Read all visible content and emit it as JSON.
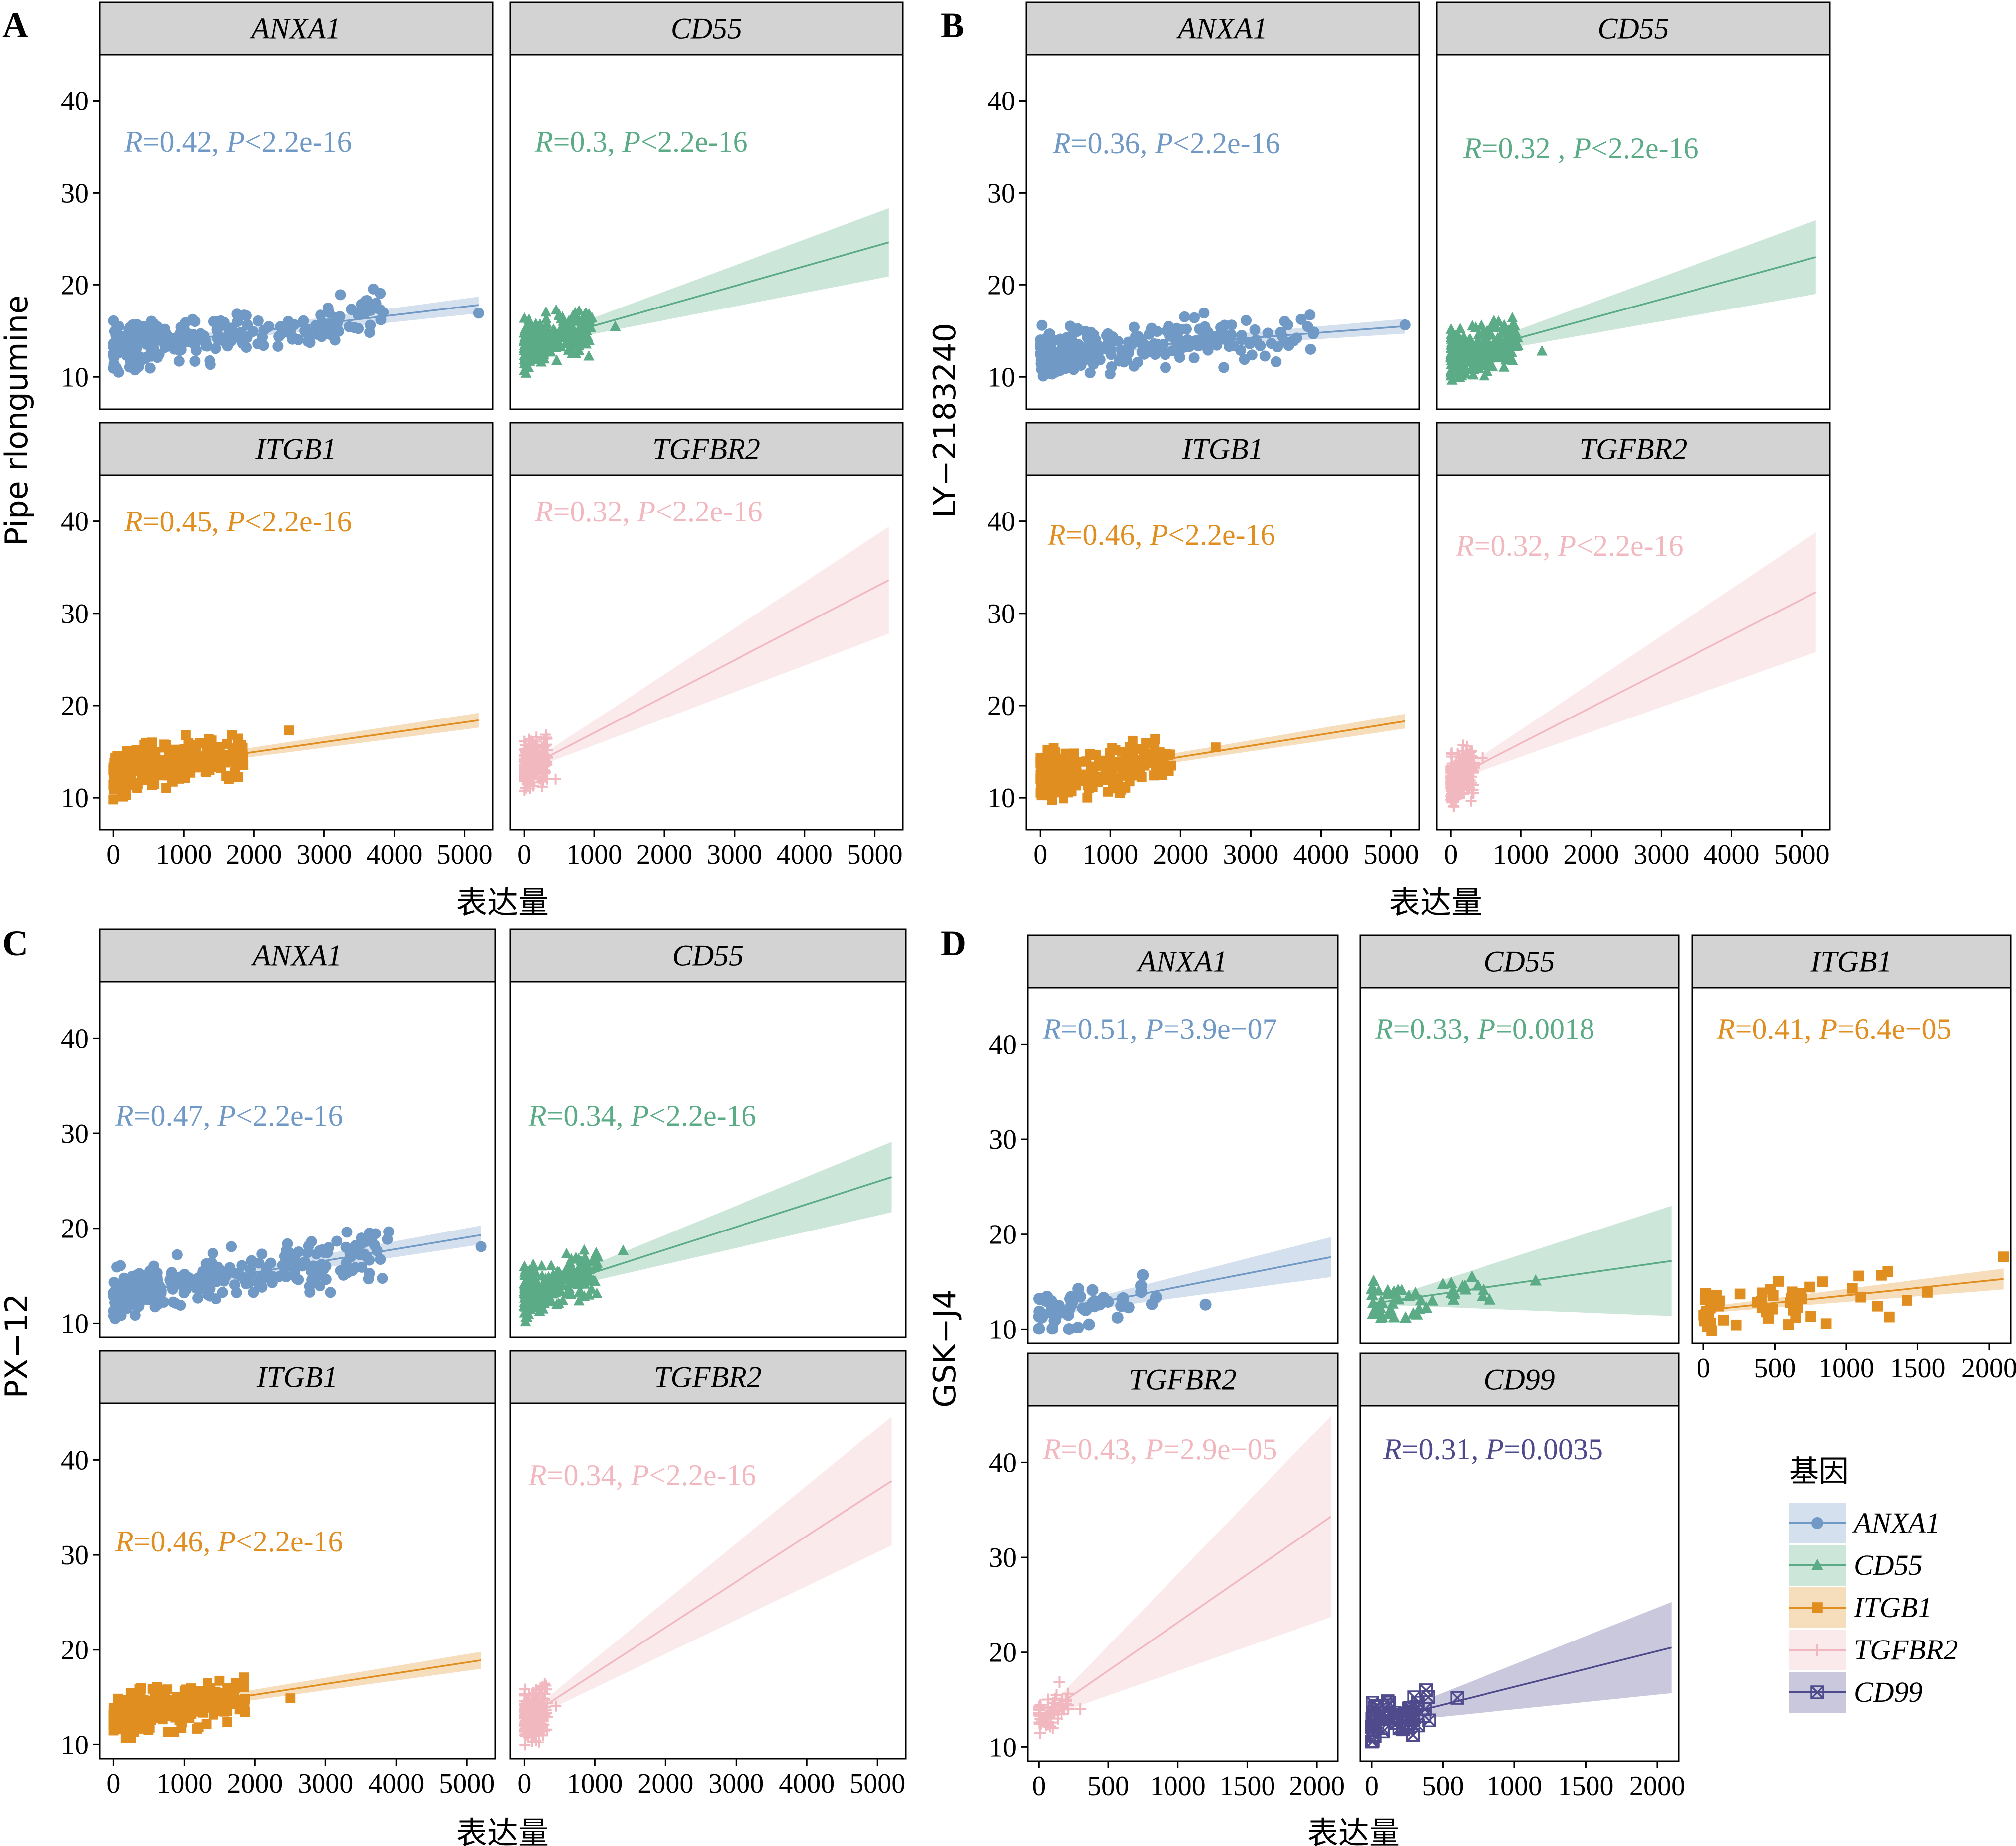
{
  "figure": {
    "legend": {
      "title": "基因",
      "entries": [
        {
          "name": "ANXA1",
          "color": "#7099c5",
          "shape": "circle"
        },
        {
          "name": "CD55",
          "color": "#5aab86",
          "shape": "triangle"
        },
        {
          "name": "ITGB1",
          "color": "#e18e21",
          "shape": "square"
        },
        {
          "name": "TGFBR2",
          "color": "#f2b8c0",
          "shape": "plus"
        },
        {
          "name": "CD99",
          "color": "#4e4a8c",
          "shape": "boxcross"
        }
      ]
    }
  },
  "chart_data": [
    {
      "panel": "A",
      "type": "scatter",
      "ylabel": "Pipe rlongumine",
      "xlabel": "表达量",
      "xlim": [
        -200,
        5400
      ],
      "ylim": [
        6.5,
        45
      ],
      "xticks": [
        0,
        1000,
        2000,
        3000,
        4000,
        5000
      ],
      "yticks": [
        10,
        20,
        30,
        40
      ],
      "facets": [
        {
          "gene": "ANXA1",
          "r": "0.42",
          "p": "<2.2e-16",
          "line": {
            "x0": 0,
            "y0": 13.1,
            "x1": 5200,
            "y1": 17.8
          },
          "band_halfwidth": 0.9,
          "max_x": 5200
        },
        {
          "gene": "CD55",
          "r": "0.3",
          "p": "<2.2e-16",
          "line": {
            "x0": 0,
            "y0": 13.4,
            "x1": 5200,
            "y1": 24.6
          },
          "band_halfwidth": 3.7,
          "max_x": 1300
        },
        {
          "gene": "ITGB1",
          "r": "0.45",
          "p": "<2.2e-16",
          "line": {
            "x0": 0,
            "y0": 12.8,
            "x1": 5200,
            "y1": 18.4
          },
          "band_halfwidth": 0.8,
          "max_x": 2500
        },
        {
          "gene": "TGFBR2",
          "r": "0.32",
          "p": "<2.2e-16",
          "line": {
            "x0": 0,
            "y0": 13.1,
            "x1": 5200,
            "y1": 33.6
          },
          "band_halfwidth": 5.8,
          "max_x": 450
        }
      ]
    },
    {
      "panel": "B",
      "type": "scatter",
      "ylabel": "LY−2183240",
      "xlabel": "表达量",
      "xlim": [
        -200,
        5400
      ],
      "ylim": [
        6.5,
        45
      ],
      "xticks": [
        0,
        1000,
        2000,
        3000,
        4000,
        5000
      ],
      "yticks": [
        10,
        20,
        30,
        40
      ],
      "facets": [
        {
          "gene": "ANXA1",
          "r": "0.36",
          "p": "<2.2e-16",
          "line": {
            "x0": 0,
            "y0": 12.5,
            "x1": 5200,
            "y1": 15.5
          },
          "band_halfwidth": 0.8,
          "max_x": 5200
        },
        {
          "gene": "CD55",
          "r": "0.32 ,",
          "p": "<2.2e-16",
          "line": {
            "x0": 0,
            "y0": 12.2,
            "x1": 5200,
            "y1": 23.0
          },
          "band_halfwidth": 4.0,
          "max_x": 1300
        },
        {
          "gene": "ITGB1",
          "r": "0.46",
          "p": "<2.2e-16",
          "line": {
            "x0": 0,
            "y0": 12.0,
            "x1": 5200,
            "y1": 18.3
          },
          "band_halfwidth": 0.8,
          "max_x": 2500
        },
        {
          "gene": "TGFBR2",
          "r": "0.32",
          "p": "<2.2e-16",
          "line": {
            "x0": 0,
            "y0": 12.0,
            "x1": 5200,
            "y1": 32.3
          },
          "band_halfwidth": 6.5,
          "max_x": 450
        }
      ]
    },
    {
      "panel": "C",
      "type": "scatter",
      "ylabel": "PX−12",
      "xlabel": "表达量",
      "xlim": [
        -200,
        5400
      ],
      "ylim": [
        8.5,
        46
      ],
      "xticks": [
        0,
        1000,
        2000,
        3000,
        4000,
        5000
      ],
      "yticks": [
        10,
        20,
        30,
        40
      ],
      "facets": [
        {
          "gene": "ANXA1",
          "r": "0.47",
          "p": "<2.2e-16",
          "line": {
            "x0": 0,
            "y0": 12.9,
            "x1": 5200,
            "y1": 19.3
          },
          "band_halfwidth": 1.0,
          "max_x": 5200
        },
        {
          "gene": "CD55",
          "r": "0.34",
          "p": "<2.2e-16",
          "line": {
            "x0": 0,
            "y0": 13.0,
            "x1": 5200,
            "y1": 25.4
          },
          "band_halfwidth": 3.7,
          "max_x": 1400
        },
        {
          "gene": "ITGB1",
          "r": "0.46",
          "p": "<2.2e-16",
          "line": {
            "x0": 0,
            "y0": 13.0,
            "x1": 5200,
            "y1": 18.9
          },
          "band_halfwidth": 0.9,
          "max_x": 2500
        },
        {
          "gene": "TGFBR2",
          "r": "0.34",
          "p": "<2.2e-16",
          "line": {
            "x0": 0,
            "y0": 12.7,
            "x1": 5200,
            "y1": 37.8
          },
          "band_halfwidth": 6.8,
          "max_x": 450
        }
      ]
    },
    {
      "panel": "D",
      "type": "scatter",
      "ylabel": "GSK−J4",
      "xlabel": "表达量",
      "xlim": [
        -80,
        2150
      ],
      "ylim": [
        8.5,
        46
      ],
      "xticks": [
        0,
        500,
        1000,
        1500,
        2000
      ],
      "yticks": [
        10,
        20,
        30,
        40
      ],
      "facets": [
        {
          "gene": "ANXA1",
          "r": "0.51",
          "p": "=3.9e−07",
          "line": {
            "x0": 0,
            "y0": 11.6,
            "x1": 2100,
            "y1": 17.6
          },
          "band_halfwidth": 2.1,
          "max_x": 1200
        },
        {
          "gene": "CD55",
          "r": "0.33",
          "p": "=0.0018",
          "line": {
            "x0": 0,
            "y0": 12.7,
            "x1": 2100,
            "y1": 17.2
          },
          "band_halfwidth": 5.8,
          "max_x": 1150
        },
        {
          "gene": "ITGB1",
          "r": "0.41",
          "p": "=6.4e−05",
          "line": {
            "x0": 0,
            "y0": 12.0,
            "x1": 2100,
            "y1": 15.3
          },
          "band_halfwidth": 1.1,
          "max_x": 2100
        },
        {
          "gene": "TGFBR2",
          "r": "0.43",
          "p": "=2.9e−05",
          "line": {
            "x0": 0,
            "y0": 13.0,
            "x1": 2100,
            "y1": 34.3
          },
          "band_halfwidth": 10.6,
          "max_x": 300
        },
        {
          "gene": "CD99",
          "r": "0.31",
          "p": "=0.0035",
          "line": {
            "x0": 0,
            "y0": 12.6,
            "x1": 2100,
            "y1": 20.5
          },
          "band_halfwidth": 4.8,
          "max_x": 600
        }
      ]
    }
  ]
}
